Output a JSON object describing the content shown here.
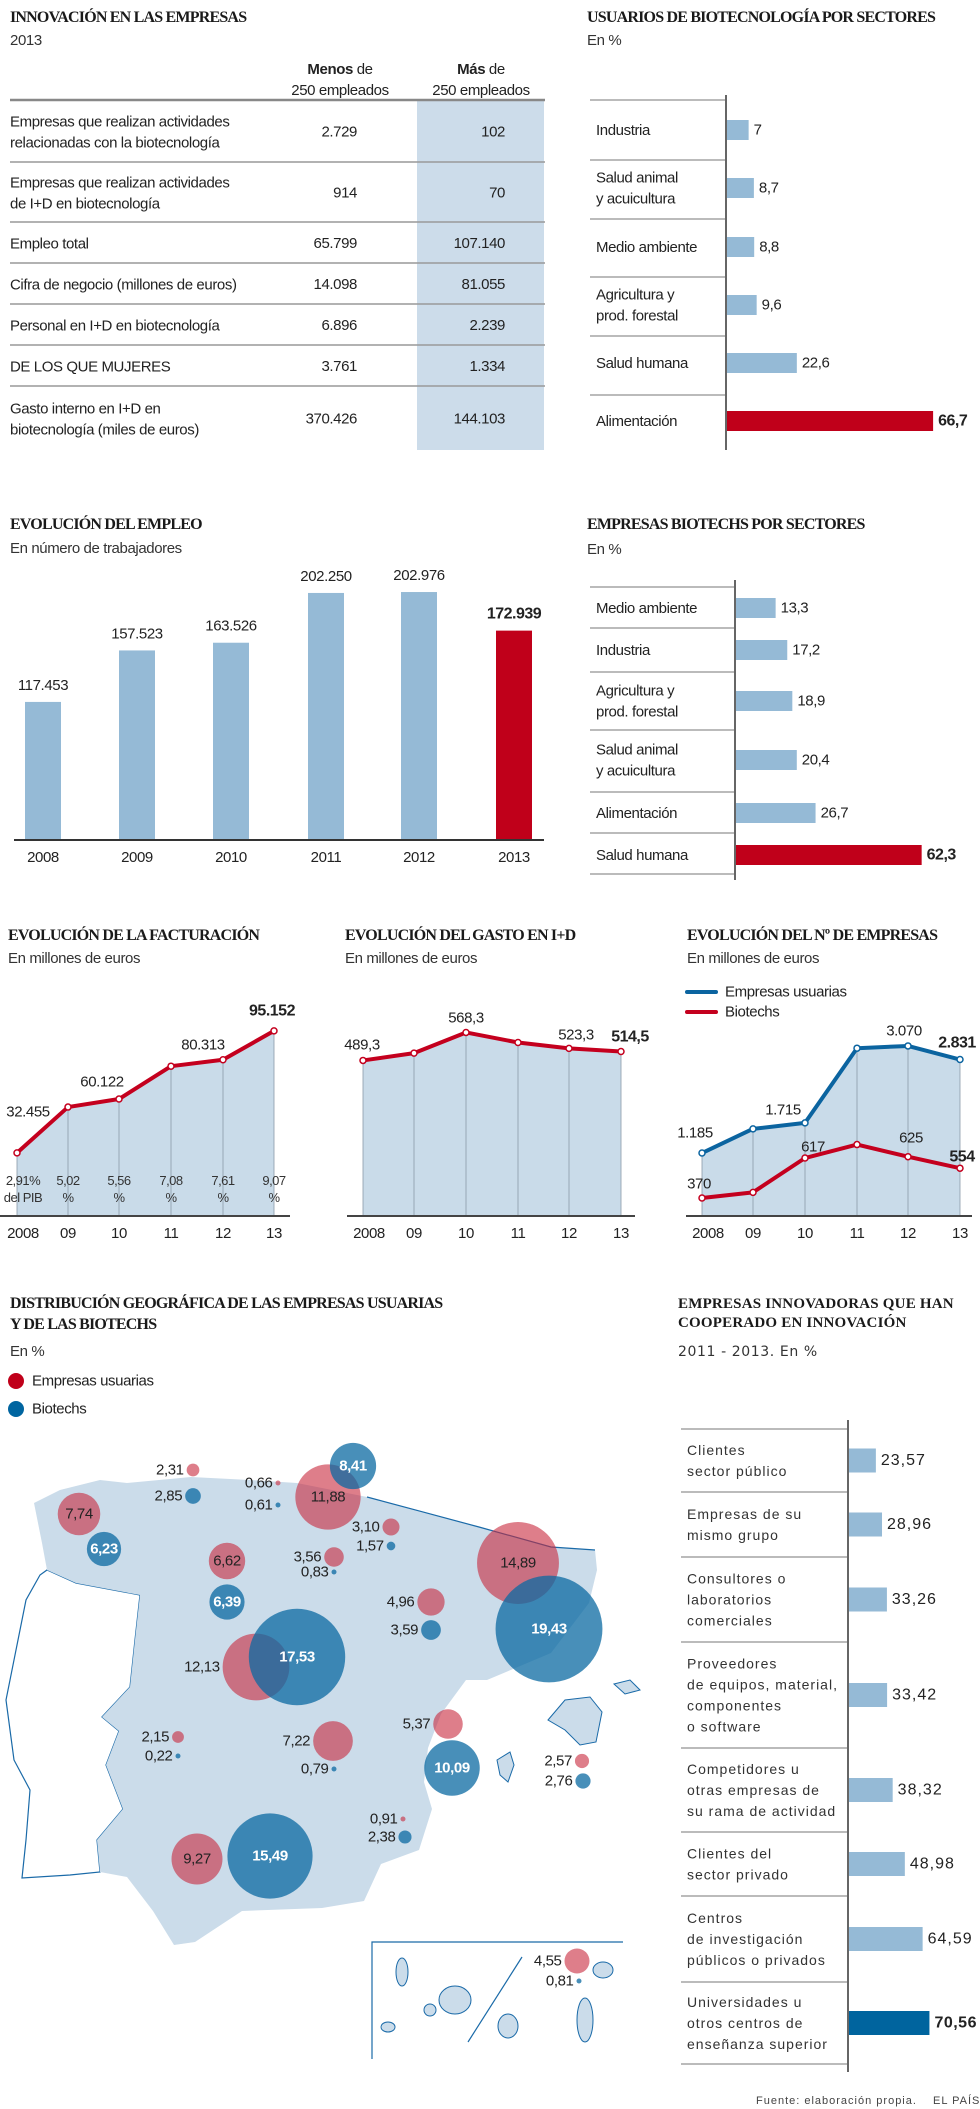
{
  "colors": {
    "bar_light": "#95bad6",
    "highlight_red": "#c0001a",
    "highlight_blue": "#00649e",
    "table_shade": "#ccdcea",
    "area_fill": "#c9dbe9",
    "map_fill": "#cbdcea",
    "line_red": "#c4001e",
    "line_blue": "#0b64a0",
    "bubble_red": "#c8283c",
    "bubble_blue": "#0b6aa2"
  },
  "innovacion": {
    "title": "INNOVACIÓN EN LAS EMPRESAS",
    "subtitle": "2013",
    "columns": [
      {
        "bold": "Menos",
        "rest": " de",
        "line2": "250 empleados"
      },
      {
        "bold": "Más",
        "rest": " de",
        "line2": "250 empleados"
      }
    ],
    "rows": [
      {
        "label": [
          "Empresas que realizan actividades",
          "relacionadas con la biotecnología"
        ],
        "menos": "2.729",
        "mas": "102"
      },
      {
        "label": [
          "Empresas que realizan actividades",
          "de I+D en biotecnología"
        ],
        "menos": "914",
        "mas": "70"
      },
      {
        "label": [
          "Empleo total"
        ],
        "menos": "65.799",
        "mas": "107.140"
      },
      {
        "label": [
          "Cifra de negocio (millones de euros)"
        ],
        "menos": "14.098",
        "mas": "81.055"
      },
      {
        "label": [
          "Personal en I+D en biotecnología"
        ],
        "menos": "6.896",
        "mas": "2.239"
      },
      {
        "label": [
          "DE LOS QUE MUJERES"
        ],
        "menos": "3.761",
        "mas": "1.334"
      },
      {
        "label": [
          "Gasto interno en I+D en",
          "biotecnología (miles de euros)"
        ],
        "menos": "370.426",
        "mas": "144.103"
      }
    ]
  },
  "chart_data": [
    {
      "type": "bar",
      "orientation": "horizontal",
      "title": "USUARIOS DE BIOTECNOLOGÍA POR SECTORES",
      "subtitle": "En %",
      "categories": [
        [
          "Industria"
        ],
        [
          "Salud animal",
          "y acuicultura"
        ],
        [
          "Medio ambiente"
        ],
        [
          "Agricultura y",
          "prod. forestal"
        ],
        [
          "Salud humana"
        ],
        [
          "Alimentación"
        ]
      ],
      "values": [
        "7",
        "8,7",
        "8,8",
        "9,6",
        "22,6",
        "66,7"
      ],
      "highlight": 5
    },
    {
      "type": "bar",
      "orientation": "vertical",
      "title": "EVOLUCIÓN DEL EMPLEO",
      "subtitle": "En número de trabajadores",
      "categories": [
        "2008",
        "2009",
        "2010",
        "2011",
        "2012",
        "2013"
      ],
      "values": [
        "117.453",
        "157.523",
        "163.526",
        "202.250",
        "202.976",
        "172.939"
      ],
      "highlight": 5,
      "ylim": [
        10000,
        210000
      ]
    },
    {
      "type": "bar",
      "orientation": "horizontal",
      "title": "EMPRESAS BIOTECHS POR SECTORES",
      "subtitle": "En %",
      "categories": [
        [
          "Medio ambiente"
        ],
        [
          "Industria"
        ],
        [
          "Agricultura y",
          "prod. forestal"
        ],
        [
          "Salud animal",
          "y acuicultura"
        ],
        [
          "Alimentación"
        ],
        [
          "Salud humana"
        ]
      ],
      "values": [
        "13,3",
        "17,2",
        "18,9",
        "20,4",
        "26,7",
        "62,3"
      ],
      "highlight": 5
    },
    {
      "type": "area",
      "title": "EVOLUCIÓN DE LA FACTURACIÓN",
      "subtitle": "En millones de euros",
      "x": [
        "2008",
        "09",
        "10",
        "11",
        "12",
        "13"
      ],
      "ylim": [
        0,
        110000
      ],
      "series": [
        {
          "values": [
            32455,
            56000,
            60122,
            77000,
            80313,
            95152
          ],
          "labels": [
            "32.455",
            null,
            "60.122",
            null,
            "80.313",
            "95.152"
          ]
        }
      ],
      "annotations": [
        [
          "2,91%",
          "del PIB"
        ],
        [
          "5,02",
          "%"
        ],
        [
          "5,56",
          "%"
        ],
        [
          "7,08",
          "%"
        ],
        [
          "7,61",
          "%"
        ],
        [
          "9,07",
          "%"
        ]
      ]
    },
    {
      "type": "area",
      "title": "EVOLUCIÓN DEL GASTO EN I+D",
      "subtitle": "En millones de euros",
      "x": [
        "2008",
        "09",
        "10",
        "11",
        "12",
        "13"
      ],
      "ylim": [
        50,
        660
      ],
      "series": [
        {
          "values": [
            489.3,
            510,
            568.3,
            540,
            523.3,
            514.5
          ],
          "labels": [
            "489,3",
            null,
            "568,3",
            null,
            "523,3",
            "514,5"
          ]
        }
      ]
    },
    {
      "type": "line",
      "title": "EVOLUCIÓN DEL Nº DE EMPRESAS",
      "subtitle": "En millones de euros",
      "x": [
        "2008",
        "09",
        "10",
        "11",
        "12",
        "13"
      ],
      "series": [
        {
          "name": "Empresas usuarias",
          "color": "#0b64a0",
          "values": [
            1185,
            1610,
            1715,
            3030,
            3070,
            2831
          ],
          "labels": [
            "1.185",
            null,
            "1.715",
            null,
            "3.070",
            "2.831"
          ]
        },
        {
          "name": "Biotechs",
          "color": "#c4001e",
          "values": [
            370,
            405,
            617,
            700,
            625,
            554
          ],
          "labels": [
            "370",
            null,
            "617",
            null,
            "625",
            "554"
          ]
        }
      ]
    },
    {
      "type": "bubble-map",
      "title": [
        "DISTRIBUCIÓN GEOGRÁFICA DE LAS EMPRESAS USUARIAS",
        "Y DE LAS BIOTECHS"
      ],
      "subtitle": "En %",
      "legend": [
        {
          "name": "Empresas usuarias",
          "color": "#c0001a"
        },
        {
          "name": "Biotechs",
          "color": "#0065a0"
        }
      ],
      "regions": [
        {
          "usuarias": "7,74",
          "biotechs": "6,23"
        },
        {
          "usuarias": "2,31",
          "biotechs": "2,85"
        },
        {
          "usuarias": "0,66",
          "biotechs": "0,61"
        },
        {
          "usuarias": "11,88",
          "biotechs": "8,41"
        },
        {
          "usuarias": "3,10",
          "biotechs": "1,57"
        },
        {
          "usuarias": "3,56",
          "biotechs": "0,83"
        },
        {
          "usuarias": "6,62",
          "biotechs": "6,39"
        },
        {
          "usuarias": "4,96",
          "biotechs": "3,59"
        },
        {
          "usuarias": "14,89",
          "biotechs": "19,43"
        },
        {
          "usuarias": "12,13",
          "biotechs": "17,53"
        },
        {
          "usuarias": "2,15",
          "biotechs": "0,22"
        },
        {
          "usuarias": "7,22",
          "biotechs": "0,79"
        },
        {
          "usuarias": "5,37",
          "biotechs": "10,09"
        },
        {
          "usuarias": "2,57",
          "biotechs": "2,76"
        },
        {
          "usuarias": "0,91",
          "biotechs": "2,38"
        },
        {
          "usuarias": "9,27",
          "biotechs": "15,49"
        },
        {
          "usuarias": "4,55",
          "biotechs": "0,81"
        }
      ]
    },
    {
      "type": "bar",
      "orientation": "horizontal",
      "title": [
        "EMPRESAS INNOVADORAS QUE HAN",
        "COOPERADO EN INNOVACIÓN"
      ],
      "subtitle": "2011 - 2013. En %",
      "categories": [
        [
          "Clientes",
          "sector público"
        ],
        [
          "Empresas de su",
          "mismo grupo"
        ],
        [
          "Consultores o",
          "laboratorios",
          "comerciales"
        ],
        [
          "Proveedores",
          "de equipos, material,",
          "componentes",
          "o software"
        ],
        [
          "Competidores u",
          "otras empresas de",
          "su rama de actividad"
        ],
        [
          "Clientes del",
          "sector privado"
        ],
        [
          "Centros",
          "de investigación",
          "públicos o privados"
        ],
        [
          "Universidades u",
          "otros centros de",
          "enseñanza superior"
        ]
      ],
      "values": [
        "23,57",
        "28,96",
        "33,26",
        "33,42",
        "38,32",
        "48,98",
        "64,59",
        "70,56"
      ],
      "highlight": 7
    }
  ],
  "footer": {
    "source": "Fuente: elaboración propia.",
    "brand": "EL PAÍS"
  }
}
